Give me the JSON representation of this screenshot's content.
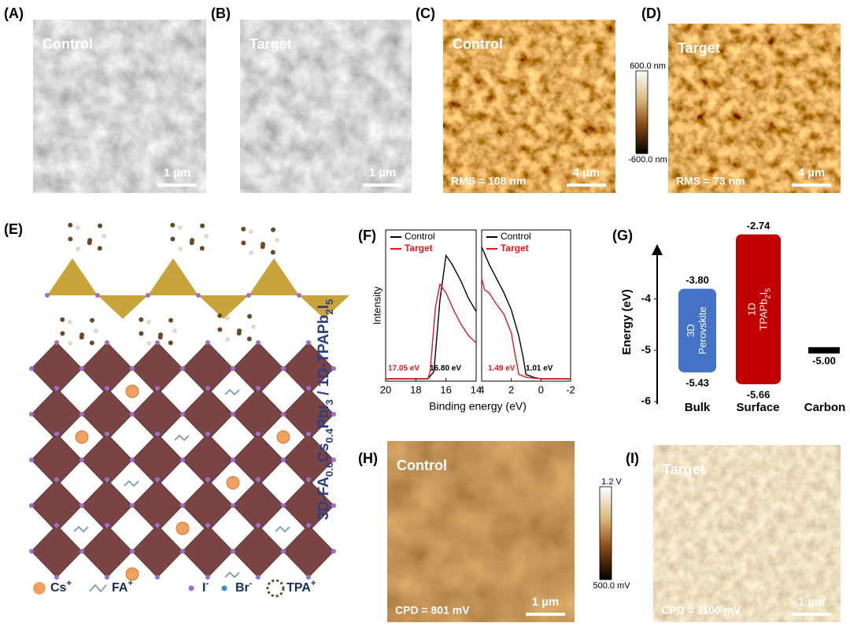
{
  "panels": {
    "A": {
      "label": "(A)",
      "caption": "Control",
      "scale_bar": "1 µm"
    },
    "B": {
      "label": "(B)",
      "caption": "Target",
      "scale_bar": "1 µm"
    },
    "C": {
      "label": "(C)",
      "caption": "Control",
      "note": "RMS = 108 nm",
      "scale_bar": "4 µm"
    },
    "D": {
      "label": "(D)",
      "caption": "Target",
      "note": "RMS = 73 nm",
      "scale_bar": "4 µm"
    },
    "H": {
      "label": "(H)",
      "caption": "Control",
      "note": "CPD = 801 mV",
      "scale_bar": "1 µm"
    },
    "I": {
      "label": "(I)",
      "caption": "Target",
      "note": "CPD = 1100 mV",
      "scale_bar": "1 µm"
    }
  },
  "colorbars": [
    {
      "max": "600.0 nm",
      "min": "-600.0 nm"
    },
    {
      "max": "1.2 V",
      "min": "500.0 mV"
    }
  ],
  "structure": {
    "label": "(E)",
    "formula": [
      {
        "text": "3D-FA"
      },
      {
        "text": "0.6",
        "sub": true
      },
      {
        "text": "Cs"
      },
      {
        "text": "0.4",
        "sub": true
      },
      {
        "text": "PbI"
      },
      {
        "text": "3",
        "sub": true
      },
      {
        "text": " / 1D-TPAPb"
      },
      {
        "text": "2",
        "sub": true
      },
      {
        "text": "I"
      },
      {
        "text": "5",
        "sub": true
      }
    ],
    "legend": [
      {
        "symbol": "Cs",
        "charge": "+"
      },
      {
        "symbol": "FA",
        "charge": "+"
      },
      {
        "symbol": "I",
        "charge": "-"
      },
      {
        "symbol": "Br",
        "charge": "-"
      },
      {
        "symbol": "TPA",
        "charge": "+"
      }
    ]
  },
  "chart_data": [
    {
      "type": "line",
      "panel_label": "(F)",
      "ylabel": "Intensity",
      "xlabel": "Binding energy (eV)",
      "xlim": [
        20,
        14
      ],
      "xticks": [
        20,
        18,
        16,
        14
      ],
      "ylim": [
        0,
        1
      ],
      "series": [
        {
          "name": "Control",
          "color": "#000000",
          "x": [
            20,
            18,
            17.2,
            16.8,
            16.4,
            16.0,
            15.6,
            15,
            14.5,
            14
          ],
          "values": [
            0,
            0,
            0,
            0.05,
            0.55,
            0.86,
            0.8,
            0.68,
            0.56,
            0.47
          ]
        },
        {
          "name": "Target",
          "color": "#e0191c",
          "x": [
            20,
            18,
            17.2,
            17.05,
            16.7,
            16.4,
            16.0,
            15.5,
            15,
            14.5,
            14
          ],
          "values": [
            0,
            0,
            0,
            0.05,
            0.5,
            0.66,
            0.6,
            0.48,
            0.38,
            0.3,
            0.25
          ]
        }
      ],
      "annotations": [
        {
          "text": "17.05 eV",
          "color": "#e0191c"
        },
        {
          "text": "16.80 eV",
          "color": "#000000"
        }
      ]
    },
    {
      "type": "line",
      "xlim": [
        4,
        -2
      ],
      "xticks": [
        4,
        2,
        0,
        -2
      ],
      "ylim": [
        0,
        1
      ],
      "series": [
        {
          "name": "Control",
          "color": "#000000",
          "x": [
            4,
            3.5,
            3,
            2.5,
            2,
            1.5,
            1.2,
            1.01,
            0.5,
            0,
            -2
          ],
          "values": [
            0.92,
            0.8,
            0.7,
            0.6,
            0.48,
            0.3,
            0.15,
            0.03,
            0.01,
            0,
            0
          ]
        },
        {
          "name": "Target",
          "color": "#e0191c",
          "x": [
            4,
            3.8,
            3.5,
            3,
            2.5,
            2,
            1.8,
            1.49,
            1,
            0,
            -2
          ],
          "values": [
            0.7,
            0.62,
            0.6,
            0.52,
            0.45,
            0.32,
            0.2,
            0.03,
            0.01,
            0,
            0
          ]
        }
      ],
      "annotations": [
        {
          "text": "1.49 eV",
          "color": "#e0191c"
        },
        {
          "text": "1.01 eV",
          "color": "#000000"
        }
      ]
    },
    {
      "type": "level",
      "panel_label": "(G)",
      "ylabel": "Energy (eV)",
      "ylim": [
        -6.2,
        -2.7
      ],
      "yticks": [
        -4,
        -5,
        -6
      ],
      "categories": [
        "Bulk",
        "Surface",
        "Carbon"
      ],
      "colors": [
        "#4472c4",
        "#c00000",
        "#000000"
      ],
      "upper": [
        -3.8,
        -2.74,
        null
      ],
      "upper_labels": [
        "-3.80",
        "-2.74",
        null
      ],
      "lower": [
        -5.43,
        -5.66,
        -5.0
      ],
      "lower_labels": [
        "-5.43",
        "-5.66",
        "-5.00"
      ],
      "bar_text": [
        [
          [
            {
              "text": "3D"
            }
          ],
          [
            {
              "text": "Perovskite"
            }
          ]
        ],
        [
          [
            {
              "text": "1D"
            }
          ],
          [
            {
              "text": "TPAPb"
            },
            {
              "text": "2",
              "sub": true
            },
            {
              "text": "I"
            },
            {
              "text": "5",
              "sub": true
            }
          ]
        ],
        null
      ]
    }
  ]
}
